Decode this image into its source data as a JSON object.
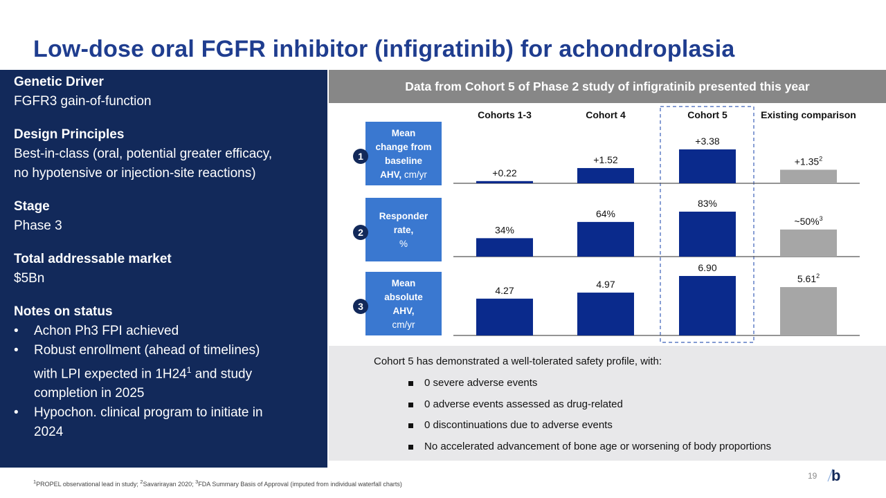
{
  "title": "Low-dose oral FGFR inhibitor (infigratinib) for achondroplasia",
  "left_panel": {
    "genetic_driver": {
      "heading": "Genetic Driver",
      "value": "FGFR3 gain-of-function"
    },
    "design_principles": {
      "heading": "Design Principles",
      "line1": "Best-in-class (oral, potential greater efficacy,",
      "line2": "no hypotensive or injection-site reactions)"
    },
    "stage": {
      "heading": "Stage",
      "value": "Phase 3"
    },
    "market": {
      "heading": "Total addressable market",
      "value": "$5Bn"
    },
    "notes": {
      "heading": "Notes on status",
      "bullet": "•",
      "n1": "Achon Ph3 FPI achieved",
      "n2_line1": "Robust enrollment (ahead of timelines)",
      "n2_line2": "with LPI expected in 1H24",
      "n2_sup": "1",
      "n2_line2b": " and study",
      "n2_line3": "completion in 2025",
      "n3_line1": "Hypochon. clinical program to initiate in",
      "n3_line2": "2024"
    }
  },
  "header": "Data from Cohort 5 of Phase 2 study of infigratinib presented this year",
  "chart_data": {
    "type": "bar",
    "categories": [
      "Cohorts 1-3",
      "Cohort 4",
      "Cohort 5",
      "Existing comparison"
    ],
    "highlighted_category": "Cohort 5",
    "colors": {
      "cohort": "#0a2a8c",
      "comparison": "#a6a6a6",
      "label_box": "#3a78d0"
    },
    "panels": [
      {
        "number": "1",
        "label_lines": [
          "Mean",
          "change from",
          "baseline"
        ],
        "label_last": {
          "bold": "AHV,",
          "normal": " cm/yr"
        },
        "values": [
          0.22,
          1.52,
          3.38,
          1.35
        ],
        "value_labels": [
          "+0.22",
          "+1.52",
          "+3.38",
          "+1.35"
        ],
        "superscripts": [
          "",
          "",
          "",
          "2"
        ],
        "ymax": 3.38
      },
      {
        "number": "2",
        "label_lines": [
          "Responder",
          "rate,"
        ],
        "label_last": {
          "bold": "",
          "normal": "%"
        },
        "values": [
          34,
          64,
          83,
          50
        ],
        "value_labels": [
          "34%",
          "64%",
          "83%",
          "~50%"
        ],
        "superscripts": [
          "",
          "",
          "",
          "3"
        ],
        "ymax": 83
      },
      {
        "number": "3",
        "label_lines": [
          "Mean",
          "absolute",
          "AHV,"
        ],
        "label_last": {
          "bold": "",
          "normal": "cm/yr"
        },
        "values": [
          4.27,
          4.97,
          6.9,
          5.61
        ],
        "value_labels": [
          "4.27",
          "4.97",
          "6.90",
          "5.61"
        ],
        "superscripts": [
          "",
          "",
          "",
          "2"
        ],
        "ymax": 6.9
      }
    ]
  },
  "safety": {
    "intro": "Cohort 5 has demonstrated a well-tolerated safety profile, with:",
    "items": [
      "0 severe adverse events",
      "0 adverse events assessed as drug-related",
      "0 discontinuations due to adverse events",
      "No accelerated advancement of bone age or worsening of body proportions"
    ]
  },
  "footnote": {
    "s1": "1",
    "t1": "PROPEL observational lead in study; ",
    "s2": "2",
    "t2": "Savarirayan 2020; ",
    "s3": "3",
    "t3": "FDA Summary Basis of Approval (imputed from individual waterfall charts)"
  },
  "page_number": "19",
  "logo_letter": "b"
}
